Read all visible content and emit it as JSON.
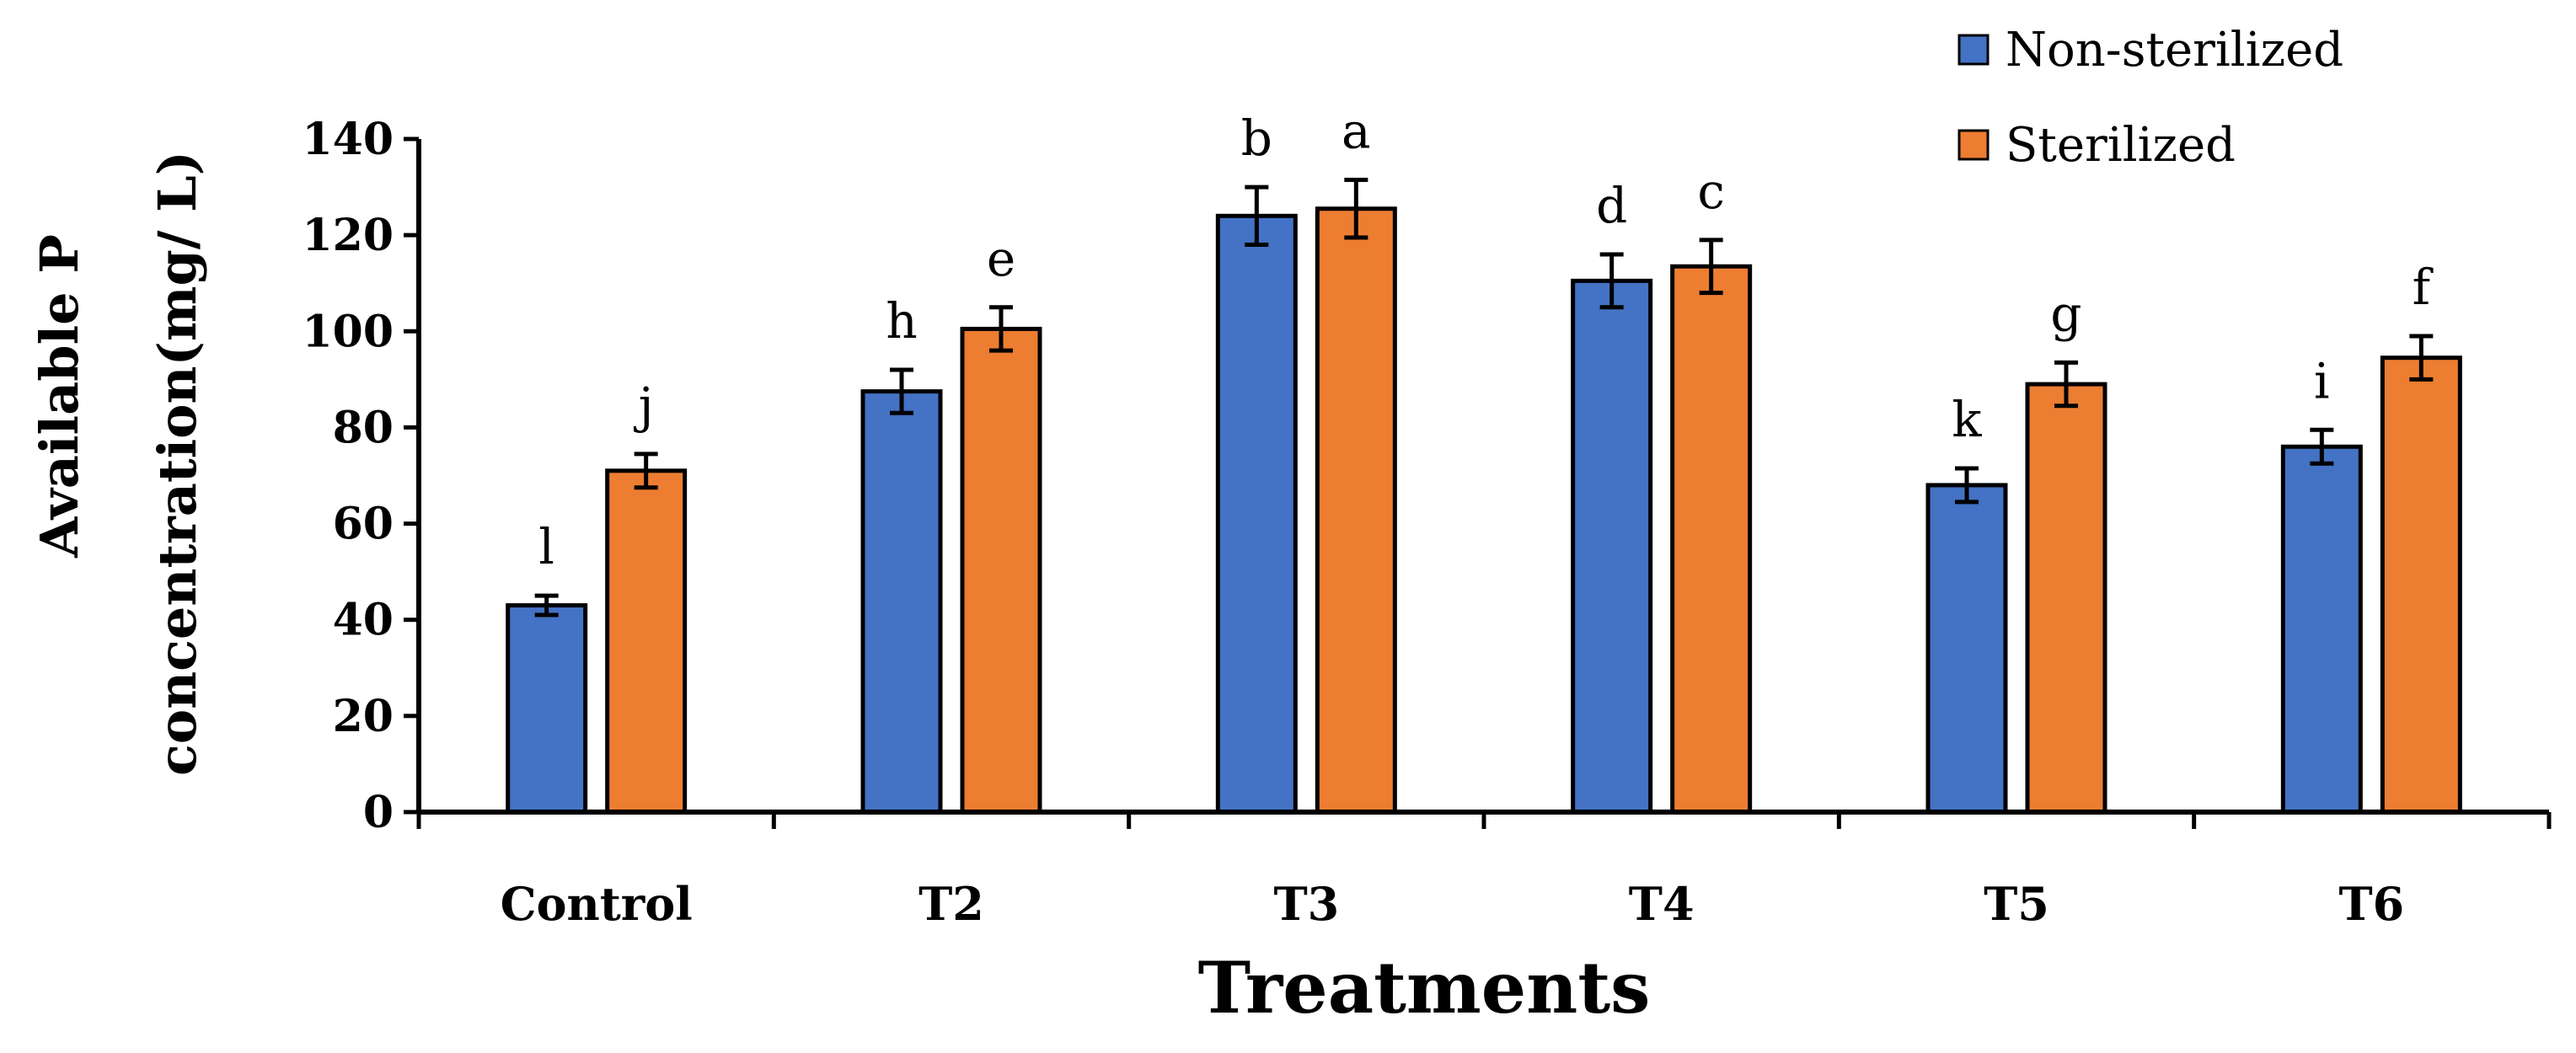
{
  "chart_data": {
    "type": "bar",
    "title": "",
    "xlabel": "Treatments",
    "ylabel_lines": [
      "Available P",
      "concentration(mg/ L)"
    ],
    "ylim": [
      0,
      140
    ],
    "yticks": [
      0,
      20,
      40,
      60,
      80,
      100,
      120,
      140
    ],
    "categories": [
      "Control",
      "T2",
      "T3",
      "T4",
      "T5",
      "T6"
    ],
    "legend_position": "top-right",
    "series": [
      {
        "name": "Non-sterilized",
        "color": "#4472C4",
        "values": [
          43,
          87.5,
          124,
          110.5,
          68,
          76
        ],
        "errors": [
          2,
          4.5,
          6,
          5.5,
          3.5,
          3.5
        ],
        "letters": [
          "l",
          "h",
          "b",
          "d",
          "k",
          "i"
        ]
      },
      {
        "name": "Sterilized",
        "color": "#ED7D31",
        "values": [
          71,
          100.5,
          125.5,
          113.5,
          89,
          94.5
        ],
        "errors": [
          3.5,
          4.5,
          6,
          5.5,
          4.5,
          4.5
        ],
        "letters": [
          "j",
          "e",
          "a",
          "c",
          "g",
          "f"
        ]
      }
    ]
  }
}
